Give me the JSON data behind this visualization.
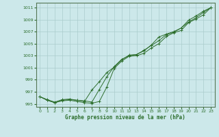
{
  "title": "Graphe pression niveau de la mer (hPa)",
  "bg_color": "#cce8ea",
  "grid_color": "#aacccc",
  "line_color": "#2d6e2d",
  "marker_color": "#2d6e2d",
  "xlim": [
    -0.5,
    23.5
  ],
  "ylim": [
    994.5,
    1011.8
  ],
  "yticks": [
    995,
    997,
    999,
    1001,
    1003,
    1005,
    1007,
    1009,
    1011
  ],
  "xticks": [
    0,
    1,
    2,
    3,
    4,
    5,
    6,
    7,
    8,
    9,
    10,
    11,
    12,
    13,
    14,
    15,
    16,
    17,
    18,
    19,
    20,
    21,
    22,
    23
  ],
  "series1": {
    "x": [
      0,
      1,
      2,
      3,
      4,
      5,
      6,
      7,
      8,
      9,
      10,
      11,
      12,
      13,
      14,
      15,
      16,
      17,
      18,
      19,
      20,
      21,
      22,
      23
    ],
    "y": [
      996.2,
      995.6,
      995.2,
      995.5,
      995.6,
      995.4,
      995.2,
      995.1,
      995.4,
      997.8,
      1000.9,
      1002.1,
      1002.9,
      1003.0,
      1003.4,
      1004.3,
      1005.0,
      1006.2,
      1006.8,
      1007.2,
      1008.5,
      1009.1,
      1009.8,
      1011.0
    ]
  },
  "series2": {
    "x": [
      0,
      1,
      2,
      3,
      4,
      5,
      6,
      7,
      8,
      9,
      10,
      11,
      12,
      13,
      14,
      15,
      16,
      17,
      18,
      19,
      20,
      21,
      22,
      23
    ],
    "y": [
      996.2,
      995.7,
      995.3,
      995.7,
      995.8,
      995.6,
      995.5,
      995.3,
      997.4,
      999.5,
      1001.2,
      1002.4,
      1003.0,
      1003.2,
      1003.9,
      1004.7,
      1005.5,
      1006.5,
      1006.9,
      1007.6,
      1008.9,
      1009.6,
      1010.4,
      1011.0
    ]
  },
  "series3": {
    "x": [
      0,
      1,
      2,
      3,
      4,
      5,
      6,
      7,
      8,
      9,
      10,
      11,
      12,
      13,
      14,
      15,
      16,
      17,
      18,
      19,
      20,
      21,
      22,
      23
    ],
    "y": [
      996.2,
      995.6,
      995.2,
      995.6,
      995.7,
      995.6,
      995.4,
      997.3,
      998.7,
      1000.2,
      1001.1,
      1002.3,
      1003.1,
      1003.2,
      1003.8,
      1004.8,
      1006.1,
      1006.6,
      1007.0,
      1007.6,
      1008.6,
      1009.3,
      1010.2,
      1011.0
    ]
  }
}
